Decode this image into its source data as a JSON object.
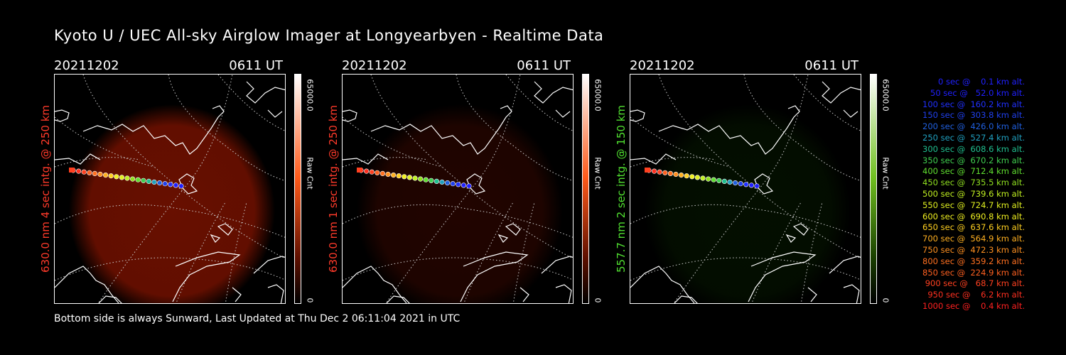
{
  "title": "Kyoto U / UEC All-sky Airglow Imager at Longyearbyen - Realtime Data",
  "footer": "Bottom side is always Sunward, Last Updated at Thu Dec  2 06:11:04 2021 in UTC",
  "panels": [
    {
      "date": "20211202",
      "time": "0611 UT",
      "side_label": "630.0 nm 4 sec intg. @ 250 km",
      "label_color": "#ff3a2a",
      "cbar_max": "65000.0",
      "cbar_unit": "Raw Cnt",
      "cbar_min": "0",
      "cbar_top_color": "#ffffff",
      "cbar_mid_color": "#ff5a1a",
      "cbar_bottom_color": "#000000",
      "image_intensity": 0.55,
      "glow_color": "#7a1200"
    },
    {
      "date": "20211202",
      "time": "0611 UT",
      "side_label": "630.0 nm 1 sec intg. @ 250 km",
      "label_color": "#ff3a2a",
      "cbar_max": "65000.0",
      "cbar_unit": "Raw Cnt",
      "cbar_min": "0",
      "cbar_top_color": "#ffffff",
      "cbar_mid_color": "#ff5a1a",
      "cbar_bottom_color": "#000000",
      "image_intensity": 0.15,
      "glow_color": "#4a0a00"
    },
    {
      "date": "20211202",
      "time": "0611 UT",
      "side_label": "557.7 nm 2 sec intg. @ 150 km",
      "label_color": "#50e030",
      "cbar_max": "65000.0",
      "cbar_unit": "Raw Cnt",
      "cbar_min": "0",
      "cbar_top_color": "#ffffff",
      "cbar_mid_color": "#70c020",
      "cbar_bottom_color": "#000000",
      "image_intensity": 0.05,
      "glow_color": "#0a2a00"
    }
  ],
  "legend": [
    {
      "text": "0 sec @    0.1 km alt.",
      "color": "#2020ff"
    },
    {
      "text": "50 sec @   52.0 km alt.",
      "color": "#2020ff"
    },
    {
      "text": "100 sec @  160.2 km alt.",
      "color": "#2030ff"
    },
    {
      "text": "150 sec @  303.8 km alt.",
      "color": "#2040ee"
    },
    {
      "text": "200 sec @  426.0 km alt.",
      "color": "#2060e0"
    },
    {
      "text": "250 sec @  527.4 km alt.",
      "color": "#20a0c0"
    },
    {
      "text": "300 sec @  608.6 km alt.",
      "color": "#20c090"
    },
    {
      "text": "350 sec @  670.2 km alt.",
      "color": "#40d050"
    },
    {
      "text": "400 sec @  712.4 km alt.",
      "color": "#60e030"
    },
    {
      "text": "450 sec @  735.5 km alt.",
      "color": "#90e020"
    },
    {
      "text": "500 sec @  739.6 km alt.",
      "color": "#c0f020"
    },
    {
      "text": "550 sec @  724.7 km alt.",
      "color": "#e0f020"
    },
    {
      "text": "600 sec @  690.8 km alt.",
      "color": "#f0f020"
    },
    {
      "text": "650 sec @  637.6 km alt.",
      "color": "#ffd020"
    },
    {
      "text": "700 sec @  564.9 km alt.",
      "color": "#ffb020"
    },
    {
      "text": "750 sec @  472.3 km alt.",
      "color": "#ff9020"
    },
    {
      "text": "800 sec @  359.2 km alt.",
      "color": "#ff7020"
    },
    {
      "text": "850 sec @  224.9 km alt.",
      "color": "#ff6020"
    },
    {
      "text": "900 sec @   68.7 km alt.",
      "color": "#ff4020"
    },
    {
      "text": "950 sec @    6.2 km alt.",
      "color": "#ff3020"
    },
    {
      "text": "1000 sec @    0.4 km alt.",
      "color": "#ff2020"
    }
  ]
}
